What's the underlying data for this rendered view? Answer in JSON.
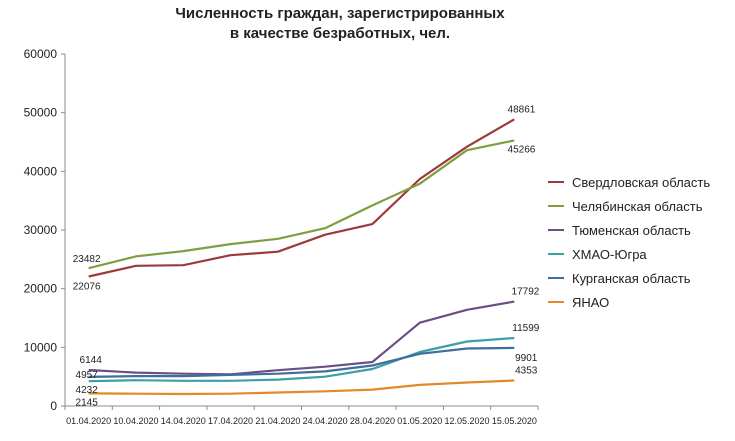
{
  "chart_data": {
    "type": "line",
    "title_lines": [
      "Численность граждан, зарегистрированных",
      "в качестве безработных, чел."
    ],
    "categories": [
      "01.04.2020",
      "10.04.2020",
      "14.04.2020",
      "17.04.2020",
      "21.04.2020",
      "24.04.2020",
      "28.04.2020",
      "01.05.2020",
      "12.05.2020",
      "15.05.2020"
    ],
    "ylim": [
      0,
      60000
    ],
    "yticks": [
      0,
      10000,
      20000,
      30000,
      40000,
      50000,
      60000
    ],
    "grid": false,
    "legend": "right",
    "series": [
      {
        "name": "Свердловская область",
        "color": "#9B3A3A",
        "values": [
          22076,
          23900,
          24000,
          25700,
          26300,
          29200,
          31000,
          38700,
          44200,
          48861
        ],
        "labels": {
          "0": "22076",
          "9": "48861"
        }
      },
      {
        "name": "Челябинская область",
        "color": "#7F9F3F",
        "values": [
          23482,
          25500,
          26400,
          27600,
          28500,
          30300,
          34200,
          37900,
          43600,
          45266
        ],
        "labels": {
          "0": "23482",
          "9": "45266"
        }
      },
      {
        "name": "Тюменская область",
        "color": "#6B4E85",
        "values": [
          6144,
          5700,
          5500,
          5400,
          6100,
          6700,
          7500,
          14200,
          16400,
          17792
        ],
        "labels": {
          "0": "6144",
          "9": "17792"
        }
      },
      {
        "name": "ХМАО-Югра",
        "color": "#3D9FA6",
        "values": [
          4232,
          4400,
          4300,
          4300,
          4500,
          5000,
          6300,
          9200,
          11000,
          11599
        ],
        "labels": {
          "0": "4232",
          "9": "11599"
        }
      },
      {
        "name": "Курганская область",
        "color": "#3F6E9C",
        "values": [
          4957,
          5100,
          5100,
          5300,
          5500,
          5900,
          6900,
          8900,
          9800,
          9901
        ],
        "labels": {
          "0": "4957",
          "9": "9901"
        }
      },
      {
        "name": "ЯНАО",
        "color": "#E08A2C",
        "values": [
          2145,
          2100,
          2050,
          2100,
          2300,
          2500,
          2800,
          3600,
          4000,
          4353
        ],
        "labels": {
          "0": "2145",
          "9": "4353"
        }
      }
    ]
  }
}
